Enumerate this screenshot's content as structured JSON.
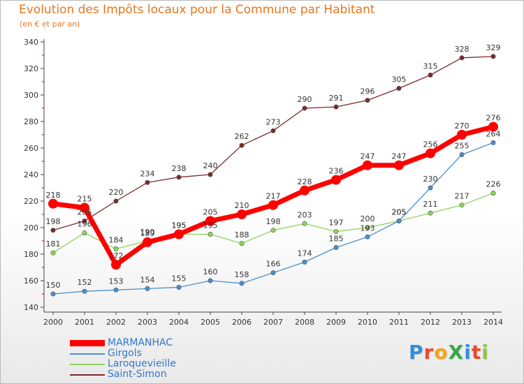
{
  "title": "Evolution des Impôts locaux pour la Commune par Habitant",
  "subtitle": "(en € et par an)",
  "logo": {
    "text": "ProXiti",
    "letters": [
      {
        "ch": "P",
        "color": "#2f8fd8"
      },
      {
        "ch": "r",
        "color": "#e84b2c"
      },
      {
        "ch": "o",
        "color": "#f2a51c"
      },
      {
        "ch": "X",
        "color": "#3aa64a"
      },
      {
        "ch": "i",
        "color": "#2f8fd8"
      },
      {
        "ch": "t",
        "color": "#e84b2c"
      },
      {
        "ch": "i",
        "color": "#8cc63f"
      }
    ]
  },
  "chart_data": {
    "type": "line",
    "title": "Evolution des Impôts locaux pour la Commune par Habitant",
    "subtitle": "(en € et par an)",
    "xlabel": "",
    "ylabel": "",
    "x": [
      "2000",
      "2001",
      "2002",
      "2003",
      "2004",
      "2005",
      "2006",
      "2007",
      "2008",
      "2009",
      "2010",
      "2011",
      "2012",
      "2013",
      "2014"
    ],
    "yticks": [
      "140",
      "160",
      "180",
      "200",
      "220",
      "240",
      "260",
      "280",
      "300",
      "320",
      "340"
    ],
    "ylim": [
      140,
      340
    ],
    "grid": false,
    "legend_position": "bottom-left",
    "series": [
      {
        "name": "Saint-Simon",
        "color": "#7a2a2a",
        "values": [
          198,
          205,
          220,
          234,
          238,
          240,
          262,
          273,
          290,
          291,
          296,
          305,
          315,
          328,
          329
        ]
      },
      {
        "name": "Laroquevieille",
        "color": "#8cd45a",
        "values": [
          181,
          196,
          184,
          190,
          195,
          195,
          188,
          198,
          203,
          197,
          200,
          205,
          211,
          217,
          226
        ]
      },
      {
        "name": "Girgols",
        "color": "#4a8fce",
        "values": [
          150,
          152,
          153,
          154,
          155,
          160,
          158,
          166,
          174,
          185,
          193,
          205,
          230,
          255,
          264
        ]
      },
      {
        "name": "MARMANHAC",
        "color": "#ff0000",
        "values": [
          218,
          215,
          172,
          189,
          195,
          205,
          210,
          217,
          228,
          236,
          247,
          247,
          256,
          270,
          276
        ]
      }
    ]
  }
}
